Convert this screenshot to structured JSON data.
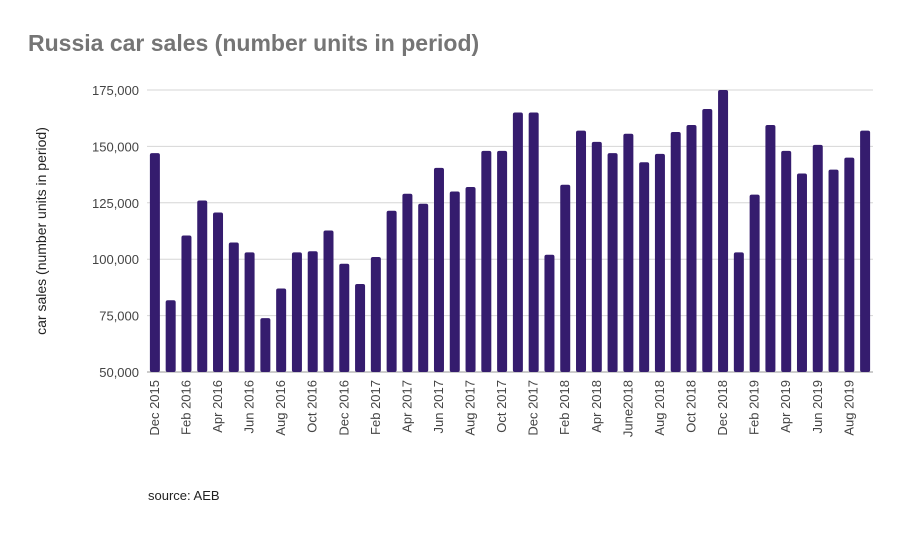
{
  "chart_data": {
    "type": "bar",
    "title": "Russia car sales (number units in period)",
    "ylabel": "car sales (number units in period)",
    "xlabel": "",
    "source": "source: AEB",
    "ylim": [
      50000,
      175000
    ],
    "yticks": [
      50000,
      75000,
      100000,
      125000,
      150000,
      175000
    ],
    "ytick_labels": [
      "50,000",
      "75,000",
      "100,000",
      "125,000",
      "150,000",
      "175,000"
    ],
    "grid": true,
    "bar_color": "#351c6e",
    "categories": [
      "Dec 2015",
      "Jan 2016",
      "Feb 2016",
      "Mar 2016",
      "Apr 2016",
      "May 2016",
      "Jun 2016",
      "Jul 2016",
      "Aug 2016",
      "Sep 2016",
      "Oct 2016",
      "Nov 2016",
      "Dec 2016",
      "Jan 2017",
      "Feb 2017",
      "Mar 2017",
      "Apr 2017",
      "May 2017",
      "Jun 2017",
      "Jul 2017",
      "Aug 2017",
      "Sep 2017",
      "Oct 2017",
      "Nov 2017",
      "Dec 2017",
      "Jan 2018",
      "Feb 2018",
      "Mar 2018",
      "Apr 2018",
      "May 2018",
      "June2018",
      "Jul 2018",
      "Aug 2018",
      "Sep 2018",
      "Oct 2018",
      "Nov 2018",
      "Dec 2018",
      "Jan 2019",
      "Feb 2019",
      "Mar 2019",
      "Apr 2019",
      "May 2019",
      "Jun 2019",
      "Jul 2019",
      "Aug 2019",
      "Sep 2019"
    ],
    "xtick_labels": [
      "Dec 2015",
      "Feb 2016",
      "Apr 2016",
      "Jun 2016",
      "Aug 2016",
      "Oct 2016",
      "Dec 2016",
      "Feb 2017",
      "Apr 2017",
      "Jun 2017",
      "Aug 2017",
      "Oct 2017",
      "Dec 2017",
      "Feb 2018",
      "Apr 2018",
      "June2018",
      "Aug 2018",
      "Oct 2018",
      "Dec 2018",
      "Feb 2019",
      "Apr 2019",
      "Jun 2019",
      "Aug 2019"
    ],
    "values": [
      147000,
      81800,
      110500,
      126000,
      120700,
      107400,
      103000,
      73900,
      87000,
      103000,
      103500,
      112700,
      98000,
      89000,
      101000,
      121500,
      129000,
      124600,
      140500,
      130000,
      132000,
      148000,
      148000,
      165000,
      165000,
      102000,
      133000,
      157000,
      152000,
      147000,
      155600,
      143000,
      146700,
      156400,
      159500,
      166600,
      175000,
      103000,
      128600,
      159500,
      148000,
      138000,
      150700,
      139700,
      145000,
      157000
    ]
  }
}
